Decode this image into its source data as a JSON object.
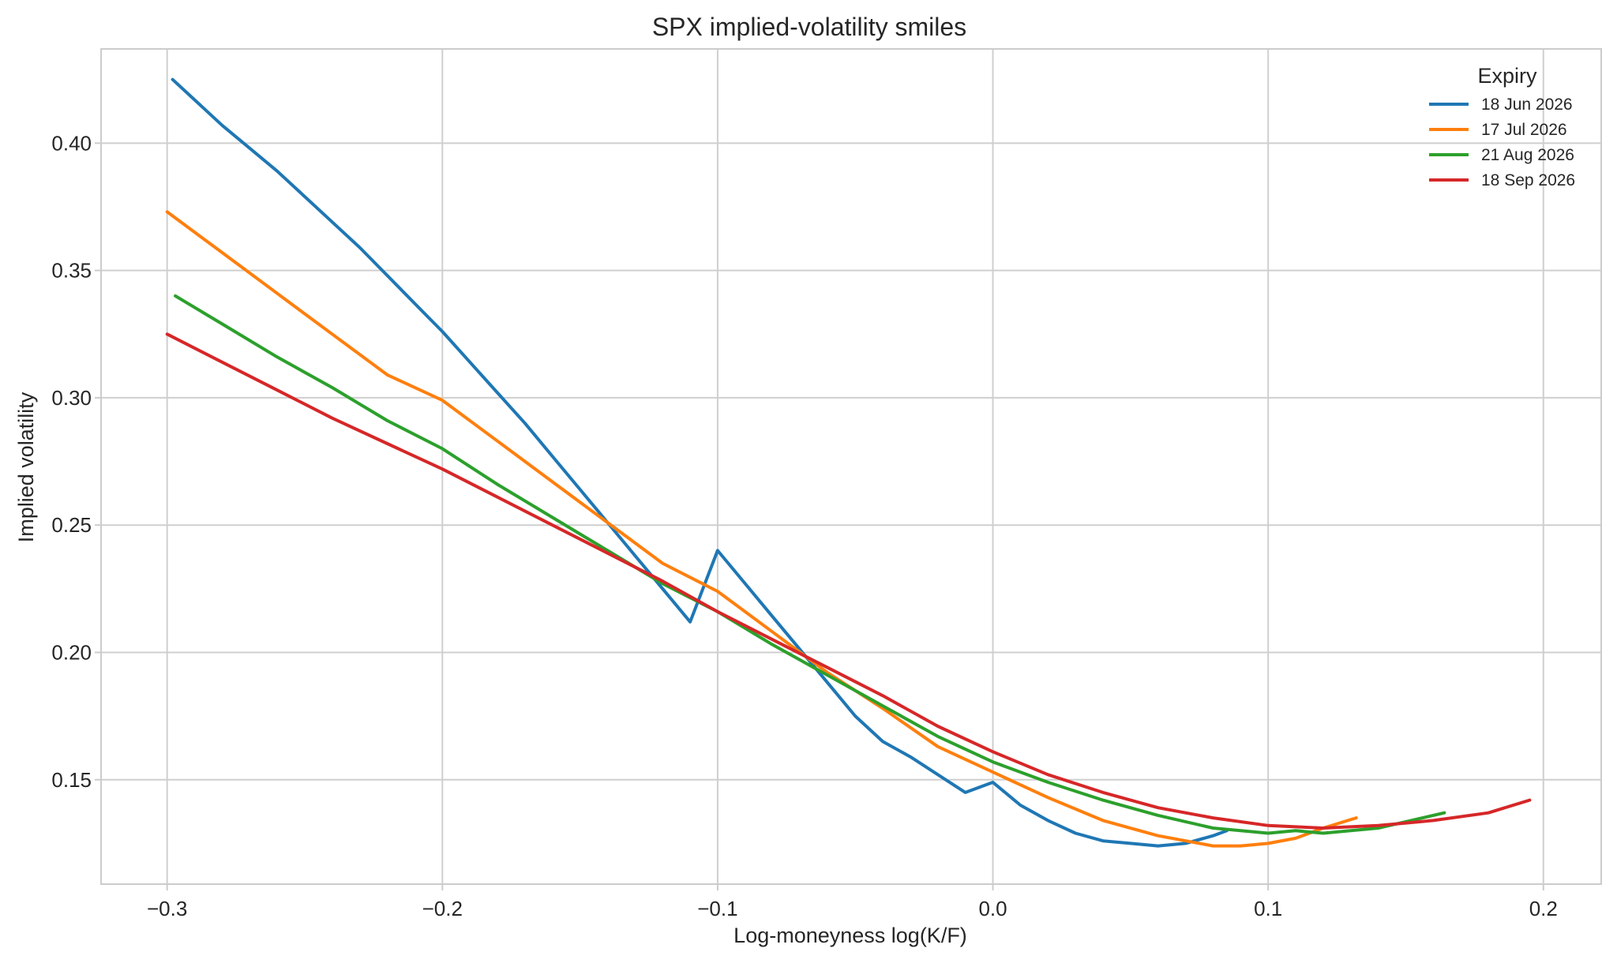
{
  "chart_data": {
    "type": "line",
    "title": "SPX implied-volatility smiles",
    "xlabel": "Log-moneyness  log(K/F)",
    "ylabel": "Implied volatility",
    "xlim": [
      -0.324,
      0.221
    ],
    "ylim": [
      0.109,
      0.437
    ],
    "x_ticks": [
      -0.3,
      -0.2,
      -0.1,
      0.0,
      0.1,
      0.2
    ],
    "x_tick_labels": [
      "−0.3",
      "−0.2",
      "−0.1",
      "0.0",
      "0.1",
      "0.2"
    ],
    "y_ticks": [
      0.15,
      0.2,
      0.25,
      0.3,
      0.35,
      0.4
    ],
    "y_tick_labels": [
      "0.15",
      "0.20",
      "0.25",
      "0.30",
      "0.35",
      "0.40"
    ],
    "grid": true,
    "legend": {
      "title": "Expiry",
      "placement": "top-right"
    },
    "series": [
      {
        "name": "18 Jun 2026",
        "color": "#1f77b4",
        "x": [
          -0.298,
          -0.29,
          -0.28,
          -0.27,
          -0.26,
          -0.25,
          -0.24,
          -0.23,
          -0.22,
          -0.21,
          -0.2,
          -0.19,
          -0.18,
          -0.17,
          -0.16,
          -0.15,
          -0.14,
          -0.13,
          -0.12,
          -0.11,
          -0.1,
          -0.09,
          -0.08,
          -0.07,
          -0.06,
          -0.05,
          -0.04,
          -0.03,
          -0.02,
          -0.01,
          0.0,
          0.01,
          0.02,
          0.03,
          0.04,
          0.05,
          0.06,
          0.07,
          0.08,
          0.085
        ],
        "y": [
          0.425,
          0.417,
          0.407,
          0.398,
          0.389,
          0.379,
          0.369,
          0.359,
          0.348,
          0.337,
          0.326,
          0.314,
          0.302,
          0.29,
          0.277,
          0.264,
          0.251,
          0.238,
          0.225,
          0.212,
          0.24,
          0.227,
          0.214,
          0.201,
          0.188,
          0.175,
          0.165,
          0.159,
          0.152,
          0.145,
          0.149,
          0.14,
          0.134,
          0.129,
          0.126,
          0.125,
          0.124,
          0.125,
          0.128,
          0.13
        ]
      },
      {
        "name": "17 Jul 2026",
        "color": "#ff7f0e",
        "x": [
          -0.3,
          -0.28,
          -0.26,
          -0.24,
          -0.22,
          -0.2,
          -0.18,
          -0.16,
          -0.14,
          -0.12,
          -0.1,
          -0.08,
          -0.06,
          -0.04,
          -0.02,
          0.0,
          0.02,
          0.04,
          0.06,
          0.08,
          0.09,
          0.1,
          0.11,
          0.12,
          0.132
        ],
        "y": [
          0.373,
          0.357,
          0.341,
          0.325,
          0.309,
          0.299,
          0.283,
          0.267,
          0.251,
          0.235,
          0.224,
          0.208,
          0.192,
          0.178,
          0.163,
          0.153,
          0.143,
          0.134,
          0.128,
          0.124,
          0.124,
          0.125,
          0.127,
          0.131,
          0.135
        ]
      },
      {
        "name": "21 Aug 2026",
        "color": "#2ca02c",
        "x": [
          -0.297,
          -0.28,
          -0.26,
          -0.24,
          -0.22,
          -0.2,
          -0.18,
          -0.16,
          -0.14,
          -0.12,
          -0.1,
          -0.08,
          -0.06,
          -0.04,
          -0.02,
          0.0,
          0.02,
          0.04,
          0.06,
          0.08,
          0.1,
          0.11,
          0.12,
          0.14,
          0.164
        ],
        "y": [
          0.34,
          0.329,
          0.316,
          0.304,
          0.291,
          0.28,
          0.266,
          0.253,
          0.24,
          0.227,
          0.216,
          0.203,
          0.191,
          0.179,
          0.167,
          0.157,
          0.149,
          0.142,
          0.136,
          0.131,
          0.129,
          0.13,
          0.129,
          0.131,
          0.137
        ]
      },
      {
        "name": "18 Sep 2026",
        "color": "#d62728",
        "x": [
          -0.3,
          -0.28,
          -0.26,
          -0.24,
          -0.22,
          -0.2,
          -0.18,
          -0.16,
          -0.14,
          -0.12,
          -0.1,
          -0.08,
          -0.06,
          -0.04,
          -0.02,
          0.0,
          0.02,
          0.04,
          0.06,
          0.08,
          0.1,
          0.12,
          0.14,
          0.16,
          0.18,
          0.195
        ],
        "y": [
          0.325,
          0.314,
          0.303,
          0.292,
          0.282,
          0.272,
          0.261,
          0.25,
          0.239,
          0.228,
          0.216,
          0.205,
          0.194,
          0.183,
          0.171,
          0.161,
          0.152,
          0.145,
          0.139,
          0.135,
          0.132,
          0.131,
          0.132,
          0.134,
          0.137,
          0.142
        ]
      }
    ]
  }
}
